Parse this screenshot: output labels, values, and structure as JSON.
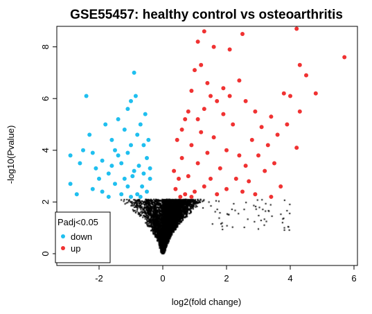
{
  "chart_data": {
    "type": "scatter",
    "title": "GSE55457: healthy control vs osteoarthritis",
    "xlabel": "log2(fold change)",
    "ylabel": "-log10(Pvalue)",
    "xlim": [
      -3,
      6
    ],
    "ylim": [
      0,
      8.8
    ],
    "x_ticks": [
      -2,
      0,
      2,
      4,
      6
    ],
    "y_ticks": [
      0,
      2,
      4,
      6,
      8
    ],
    "significance_threshold": 2.1,
    "legend": {
      "title": "Padj<0.05",
      "placement": "bottom-left",
      "entries": [
        {
          "label": "down",
          "color": "#1fbfef"
        },
        {
          "label": "up",
          "color": "#f03232"
        }
      ]
    },
    "colors": {
      "down": "#1fbfef",
      "up": "#f03232",
      "ns": "#000000"
    },
    "series": [
      {
        "name": "down",
        "points": [
          [
            -2.9,
            3.8
          ],
          [
            -2.9,
            2.7
          ],
          [
            -2.6,
            3.5
          ],
          [
            -2.5,
            4.0
          ],
          [
            -2.4,
            6.1
          ],
          [
            -2.3,
            4.6
          ],
          [
            -2.2,
            3.9
          ],
          [
            -2.2,
            2.5
          ],
          [
            -2.1,
            3.3
          ],
          [
            -2.0,
            2.9
          ],
          [
            -1.9,
            3.6
          ],
          [
            -1.9,
            2.4
          ],
          [
            -1.8,
            5.0
          ],
          [
            -1.7,
            3.1
          ],
          [
            -1.6,
            4.4
          ],
          [
            -1.5,
            4.0
          ],
          [
            -1.5,
            2.7
          ],
          [
            -1.4,
            5.2
          ],
          [
            -1.3,
            3.5
          ],
          [
            -1.2,
            4.8
          ],
          [
            -1.2,
            2.9
          ],
          [
            -1.1,
            5.6
          ],
          [
            -1.1,
            3.9
          ],
          [
            -1.0,
            4.2
          ],
          [
            -1.0,
            5.9
          ],
          [
            -0.95,
            3.0
          ],
          [
            -0.9,
            7.0
          ],
          [
            -0.85,
            6.1
          ],
          [
            -0.8,
            4.6
          ],
          [
            -0.75,
            3.4
          ],
          [
            -0.7,
            5.0
          ],
          [
            -0.65,
            2.6
          ],
          [
            -0.6,
            4.2
          ],
          [
            -0.6,
            3.1
          ],
          [
            -0.55,
            5.4
          ],
          [
            -0.5,
            3.7
          ],
          [
            -0.5,
            2.4
          ],
          [
            -0.45,
            4.4
          ],
          [
            -0.4,
            2.9
          ],
          [
            -0.4,
            3.3
          ],
          [
            -1.3,
            2.3
          ],
          [
            -1.7,
            2.2
          ],
          [
            -1.0,
            2.2
          ],
          [
            -0.8,
            2.3
          ],
          [
            -1.4,
            3.8
          ],
          [
            -0.9,
            3.2
          ],
          [
            -2.7,
            2.3
          ],
          [
            -0.7,
            2.2
          ],
          [
            -1.6,
            3.4
          ],
          [
            -1.1,
            2.6
          ]
        ]
      },
      {
        "name": "up",
        "points": [
          [
            1.1,
            8.2
          ],
          [
            1.3,
            8.6
          ],
          [
            1.6,
            8.0
          ],
          [
            1.0,
            7.1
          ],
          [
            1.2,
            7.3
          ],
          [
            2.1,
            7.9
          ],
          [
            2.5,
            8.5
          ],
          [
            4.2,
            8.7
          ],
          [
            4.3,
            7.3
          ],
          [
            4.5,
            6.9
          ],
          [
            5.7,
            7.6
          ],
          [
            3.8,
            6.2
          ],
          [
            4.0,
            6.1
          ],
          [
            4.8,
            6.2
          ],
          [
            4.3,
            5.5
          ],
          [
            3.4,
            5.3
          ],
          [
            3.6,
            4.6
          ],
          [
            3.9,
            5.0
          ],
          [
            2.4,
            6.7
          ],
          [
            2.1,
            6.1
          ],
          [
            1.9,
            6.4
          ],
          [
            1.7,
            5.9
          ],
          [
            1.5,
            6.1
          ],
          [
            1.3,
            5.6
          ],
          [
            1.1,
            5.2
          ],
          [
            0.9,
            6.3
          ],
          [
            0.8,
            5.5
          ],
          [
            0.7,
            5.2
          ],
          [
            2.9,
            5.5
          ],
          [
            3.1,
            4.9
          ],
          [
            3.3,
            4.2
          ],
          [
            3.0,
            3.8
          ],
          [
            2.8,
            4.4
          ],
          [
            2.6,
            3.4
          ],
          [
            2.4,
            3.8
          ],
          [
            2.2,
            5.0
          ],
          [
            2.0,
            4.0
          ],
          [
            1.8,
            3.3
          ],
          [
            1.6,
            4.5
          ],
          [
            1.5,
            2.9
          ],
          [
            1.4,
            3.9
          ],
          [
            1.3,
            2.6
          ],
          [
            1.2,
            4.7
          ],
          [
            1.1,
            3.5
          ],
          [
            1.0,
            2.4
          ],
          [
            0.9,
            4.2
          ],
          [
            0.8,
            3.0
          ],
          [
            0.7,
            2.3
          ],
          [
            0.6,
            3.7
          ],
          [
            0.5,
            2.9
          ],
          [
            0.45,
            4.4
          ],
          [
            0.4,
            2.5
          ],
          [
            0.35,
            3.2
          ],
          [
            3.5,
            3.5
          ],
          [
            3.2,
            3.2
          ],
          [
            2.7,
            2.8
          ],
          [
            2.5,
            2.4
          ],
          [
            2.3,
            2.9
          ],
          [
            2.0,
            2.5
          ],
          [
            1.7,
            2.3
          ],
          [
            4.2,
            4.1
          ],
          [
            3.7,
            2.6
          ],
          [
            0.6,
            4.8
          ],
          [
            1.9,
            5.4
          ],
          [
            2.6,
            5.9
          ],
          [
            1.4,
            6.6
          ],
          [
            2.9,
            2.3
          ],
          [
            3.4,
            2.2
          ],
          [
            0.9,
            2.2
          ],
          [
            0.55,
            2.2
          ]
        ]
      }
    ]
  }
}
